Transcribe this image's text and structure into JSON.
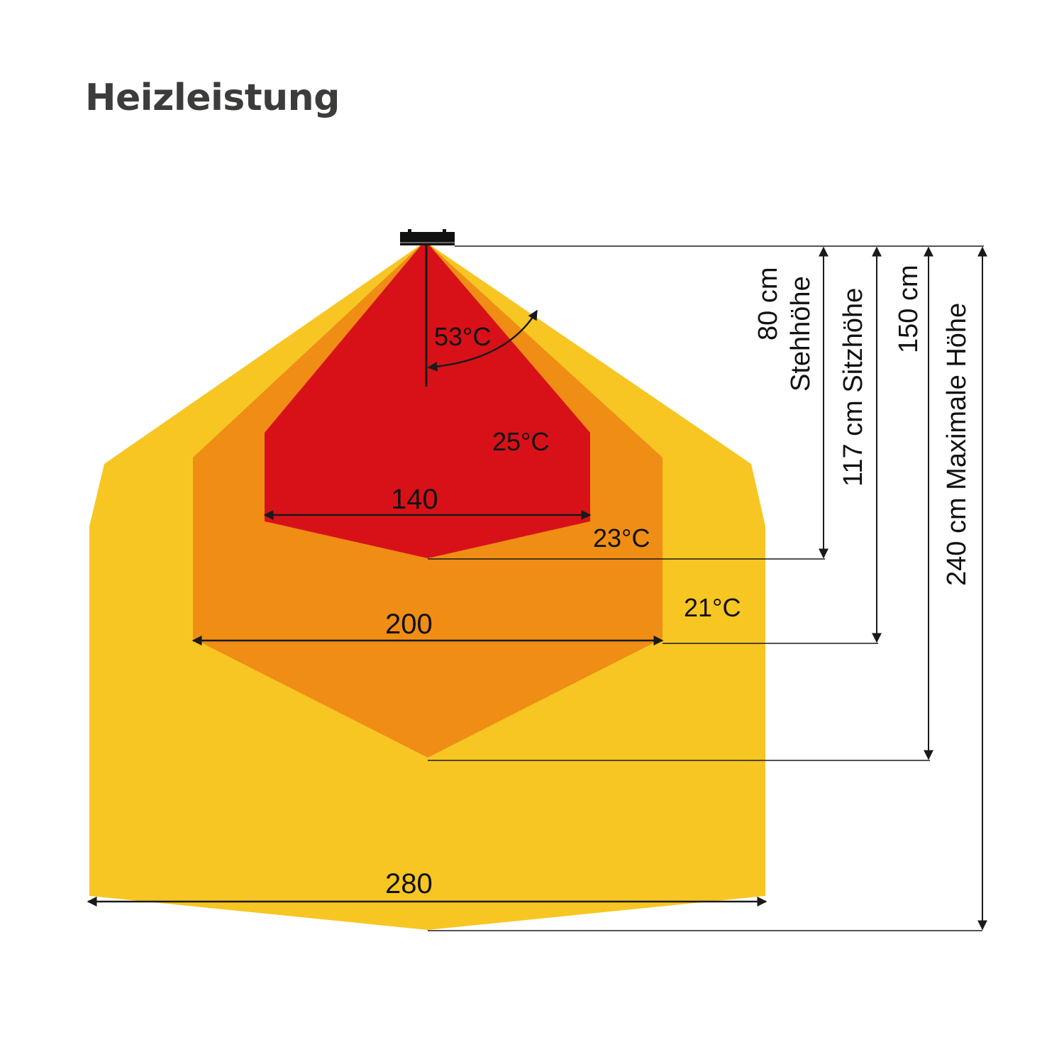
{
  "title": "Heizleistung",
  "colors": {
    "zone_25": "#d81118",
    "zone_23": "#ef8d15",
    "zone_21": "#f7c623",
    "lines": "#1a1a1a",
    "title": "#3c3c3b"
  },
  "icons": {
    "heater": "heater-icon"
  },
  "angle_label": "53°C",
  "temperature_labels": [
    "25°C",
    "23°C",
    "21°C"
  ],
  "widths": [
    "140",
    "200",
    "280"
  ],
  "heights": {
    "h80_value": "80 cm",
    "h80_label": "Stehhöhe",
    "h117": "117 cm Sitzhöhe",
    "h150": "150 cm",
    "h240": "240 cm Maximale Höhe"
  }
}
